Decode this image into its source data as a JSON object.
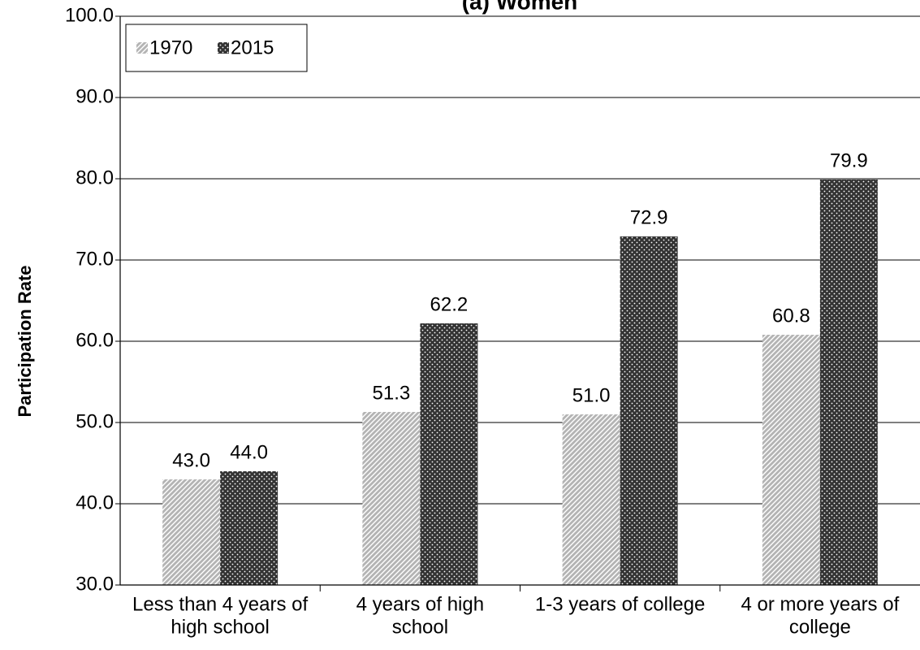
{
  "chart_data": {
    "type": "bar",
    "title": "(a) Women",
    "ylabel": "Participation Rate",
    "categories": [
      [
        "Less than 4 years of",
        "high school"
      ],
      [
        "4 years of high",
        "school"
      ],
      [
        "1-3 years of college"
      ],
      [
        "4 or more years of",
        "college"
      ]
    ],
    "series": [
      {
        "name": "1970",
        "color": "#b4b4b4",
        "values": [
          43.0,
          51.3,
          51.0,
          60.8
        ],
        "value_labels": [
          "43.0",
          "51.3",
          "51.0",
          "60.8"
        ]
      },
      {
        "name": "2015",
        "color": "#333333",
        "values": [
          44.0,
          62.2,
          72.9,
          79.9
        ],
        "value_labels": [
          "44.0",
          "62.2",
          "72.9",
          "79.9"
        ]
      }
    ],
    "ylim": [
      30,
      100
    ],
    "yticks": [
      {
        "value": 30,
        "label": "30.0"
      },
      {
        "value": 40,
        "label": "40.0"
      },
      {
        "value": 50,
        "label": "50.0"
      },
      {
        "value": 60,
        "label": "60.0"
      },
      {
        "value": 70,
        "label": "70.0"
      },
      {
        "value": 80,
        "label": "80.0"
      },
      {
        "value": 90,
        "label": "90.0"
      },
      {
        "value": 100,
        "label": "100.0"
      }
    ],
    "grid": true,
    "legend": "upper left"
  }
}
